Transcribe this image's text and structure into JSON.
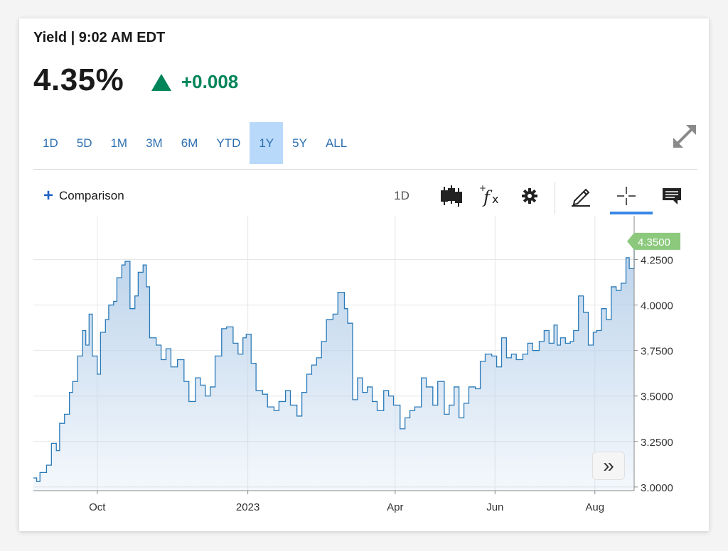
{
  "header": {
    "title": "Yield | 9:02 AM EDT",
    "price": "4.35%",
    "change": "+0.008",
    "change_color": "#00845a"
  },
  "ranges": [
    {
      "label": "1D",
      "active": false
    },
    {
      "label": "5D",
      "active": false
    },
    {
      "label": "1M",
      "active": false
    },
    {
      "label": "3M",
      "active": false
    },
    {
      "label": "6M",
      "active": false
    },
    {
      "label": "YTD",
      "active": false
    },
    {
      "label": "1Y",
      "active": true
    },
    {
      "label": "5Y",
      "active": false
    },
    {
      "label": "ALL",
      "active": false
    }
  ],
  "toolbar": {
    "comparison_label": "Comparison",
    "interval_label": "1D",
    "icons": [
      "candlestick-icon",
      "function-icon",
      "gear-icon",
      "pencil-icon",
      "crosshair-icon",
      "comment-icon"
    ],
    "active_tool": "crosshair-icon"
  },
  "chart_data": {
    "type": "area",
    "ylim": [
      2.98,
      4.49
    ],
    "yticks": [
      3.0,
      3.25,
      3.5,
      3.75,
      4.0,
      4.25
    ],
    "ytick_labels": [
      "3.0000",
      "3.2500",
      "3.5000",
      "3.7500",
      "4.0000",
      "4.2500"
    ],
    "xlim": [
      "2022-08-23",
      "2023-08-25"
    ],
    "xticks": [
      {
        "date": "2022-10-01",
        "label": "Oct"
      },
      {
        "date": "2023-01-01",
        "label": "2023"
      },
      {
        "date": "2023-04-01",
        "label": "Apr"
      },
      {
        "date": "2023-06-01",
        "label": "Jun"
      },
      {
        "date": "2023-08-01",
        "label": "Aug"
      }
    ],
    "last_value_label": "4.3500",
    "line_color": "#2a7ab8",
    "fill_color": "#b7d0ea",
    "label_color": "#8cc97d",
    "grid": true,
    "series": [
      {
        "x": [
          "2022-08-23",
          "2022-08-25",
          "2022-08-27",
          "2022-08-31",
          "2022-09-03",
          "2022-09-06",
          "2022-09-08",
          "2022-09-11",
          "2022-09-14",
          "2022-09-16",
          "2022-09-19",
          "2022-09-22",
          "2022-09-24",
          "2022-09-26",
          "2022-09-28",
          "2022-10-01",
          "2022-10-03",
          "2022-10-06",
          "2022-10-08",
          "2022-10-11",
          "2022-10-13",
          "2022-10-16",
          "2022-10-18",
          "2022-10-21",
          "2022-10-24",
          "2022-10-26",
          "2022-10-29",
          "2022-10-31",
          "2022-11-02",
          "2022-11-06",
          "2022-11-09",
          "2022-11-12",
          "2022-11-15",
          "2022-11-19",
          "2022-11-23",
          "2022-11-26",
          "2022-11-30",
          "2022-12-03",
          "2022-12-06",
          "2022-12-09",
          "2022-12-12",
          "2022-12-16",
          "2022-12-19",
          "2022-12-23",
          "2022-12-26",
          "2022-12-29",
          "2022-12-31",
          "2023-01-03",
          "2023-01-06",
          "2023-01-10",
          "2023-01-13",
          "2023-01-17",
          "2023-01-20",
          "2023-01-24",
          "2023-01-27",
          "2023-01-31",
          "2023-02-03",
          "2023-02-06",
          "2023-02-09",
          "2023-02-12",
          "2023-02-15",
          "2023-02-18",
          "2023-02-22",
          "2023-02-25",
          "2023-03-01",
          "2023-03-03",
          "2023-03-06",
          "2023-03-09",
          "2023-03-12",
          "2023-03-15",
          "2023-03-18",
          "2023-03-21",
          "2023-03-25",
          "2023-03-28",
          "2023-03-31",
          "2023-04-04",
          "2023-04-07",
          "2023-04-10",
          "2023-04-13",
          "2023-04-17",
          "2023-04-20",
          "2023-04-24",
          "2023-04-27",
          "2023-05-01",
          "2023-05-04",
          "2023-05-07",
          "2023-05-10",
          "2023-05-13",
          "2023-05-16",
          "2023-05-20",
          "2023-05-23",
          "2023-05-26",
          "2023-05-30",
          "2023-06-02",
          "2023-06-05",
          "2023-06-08",
          "2023-06-11",
          "2023-06-14",
          "2023-06-18",
          "2023-06-21",
          "2023-06-24",
          "2023-06-28",
          "2023-07-01",
          "2023-07-04",
          "2023-07-07",
          "2023-07-09",
          "2023-07-11",
          "2023-07-14",
          "2023-07-17",
          "2023-07-19",
          "2023-07-22",
          "2023-07-25",
          "2023-07-28",
          "2023-07-31",
          "2023-08-02",
          "2023-08-05",
          "2023-08-08",
          "2023-08-11",
          "2023-08-14",
          "2023-08-17",
          "2023-08-20",
          "2023-08-22",
          "2023-08-25"
        ],
        "y": [
          3.05,
          3.03,
          3.08,
          3.12,
          3.24,
          3.2,
          3.35,
          3.4,
          3.52,
          3.58,
          3.72,
          3.86,
          3.78,
          3.95,
          3.72,
          3.62,
          3.85,
          3.92,
          4.0,
          4.02,
          4.15,
          4.22,
          4.24,
          3.98,
          4.05,
          4.18,
          4.22,
          4.1,
          3.82,
          3.78,
          3.7,
          3.76,
          3.66,
          3.7,
          3.58,
          3.47,
          3.6,
          3.56,
          3.5,
          3.55,
          3.72,
          3.87,
          3.88,
          3.79,
          3.73,
          3.82,
          3.84,
          3.68,
          3.53,
          3.51,
          3.44,
          3.42,
          3.47,
          3.53,
          3.45,
          3.39,
          3.52,
          3.62,
          3.67,
          3.71,
          3.8,
          3.92,
          3.95,
          4.07,
          3.98,
          3.9,
          3.48,
          3.6,
          3.52,
          3.55,
          3.47,
          3.42,
          3.53,
          3.5,
          3.45,
          3.32,
          3.38,
          3.42,
          3.44,
          3.6,
          3.55,
          3.45,
          3.58,
          3.4,
          3.45,
          3.55,
          3.38,
          3.46,
          3.55,
          3.54,
          3.69,
          3.73,
          3.72,
          3.66,
          3.82,
          3.71,
          3.73,
          3.7,
          3.73,
          3.79,
          3.75,
          3.8,
          3.86,
          3.79,
          3.89,
          3.78,
          3.82,
          3.79,
          3.8,
          3.86,
          4.05,
          3.96,
          3.78,
          3.85,
          3.86,
          3.98,
          3.92,
          4.1,
          4.08,
          4.12,
          4.26,
          4.2,
          4.35
        ]
      }
    ]
  }
}
